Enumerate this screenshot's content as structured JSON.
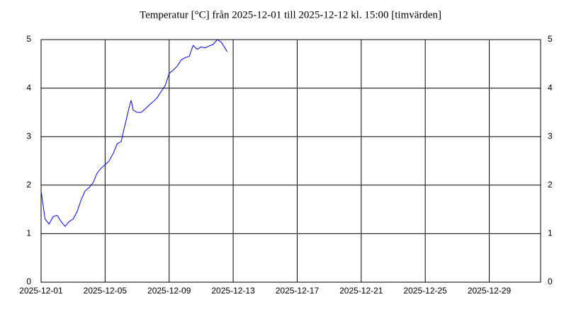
{
  "chart_data": {
    "type": "line",
    "title": "Temperatur [°C] från 2025-12-01 till 2025-12-12 kl. 15:00 [timvärden]",
    "x": [
      "2025-12-01 00:00",
      "2025-12-01 06:00",
      "2025-12-01 12:00",
      "2025-12-01 18:00",
      "2025-12-02 00:00",
      "2025-12-02 06:00",
      "2025-12-02 12:00",
      "2025-12-02 18:00",
      "2025-12-03 00:00",
      "2025-12-03 06:00",
      "2025-12-03 12:00",
      "2025-12-03 18:00",
      "2025-12-04 00:00",
      "2025-12-04 06:00",
      "2025-12-04 12:00",
      "2025-12-04 18:00",
      "2025-12-05 00:00",
      "2025-12-05 06:00",
      "2025-12-05 12:00",
      "2025-12-05 18:00",
      "2025-12-06 00:00",
      "2025-12-06 06:00",
      "2025-12-06 12:00",
      "2025-12-06 15:00",
      "2025-12-06 18:00",
      "2025-12-07 00:00",
      "2025-12-07 06:00",
      "2025-12-07 12:00",
      "2025-12-07 18:00",
      "2025-12-08 00:00",
      "2025-12-08 06:00",
      "2025-12-08 12:00",
      "2025-12-08 18:00",
      "2025-12-09 00:00",
      "2025-12-09 06:00",
      "2025-12-09 12:00",
      "2025-12-09 18:00",
      "2025-12-10 00:00",
      "2025-12-10 06:00",
      "2025-12-10 12:00",
      "2025-12-10 18:00",
      "2025-12-11 00:00",
      "2025-12-11 06:00",
      "2025-12-11 12:00",
      "2025-12-11 18:00",
      "2025-12-12 00:00",
      "2025-12-12 06:00",
      "2025-12-12 12:00",
      "2025-12-12 15:00"
    ],
    "series": [
      {
        "name": "Temperatur",
        "color": "#0000ff",
        "values": [
          1.88,
          1.3,
          1.2,
          1.35,
          1.38,
          1.25,
          1.15,
          1.25,
          1.3,
          1.45,
          1.7,
          1.88,
          1.95,
          2.05,
          2.25,
          2.35,
          2.42,
          2.5,
          2.65,
          2.85,
          2.9,
          3.25,
          3.6,
          3.75,
          3.55,
          3.5,
          3.5,
          3.57,
          3.65,
          3.72,
          3.8,
          3.93,
          4.05,
          4.3,
          4.37,
          4.45,
          4.58,
          4.63,
          4.65,
          4.88,
          4.8,
          4.85,
          4.83,
          4.87,
          4.9,
          5.0,
          4.95,
          4.82,
          4.75
        ]
      }
    ],
    "xlim": [
      "2025-12-01",
      "2026-01-01 05:00"
    ],
    "xticks": [
      "2025-12-01",
      "2025-12-05",
      "2025-12-09",
      "2025-12-13",
      "2025-12-17",
      "2025-12-21",
      "2025-12-25",
      "2025-12-29"
    ],
    "ylim": [
      0,
      5
    ],
    "yticks": [
      0,
      1,
      2,
      3,
      4,
      5
    ],
    "grid": true
  }
}
